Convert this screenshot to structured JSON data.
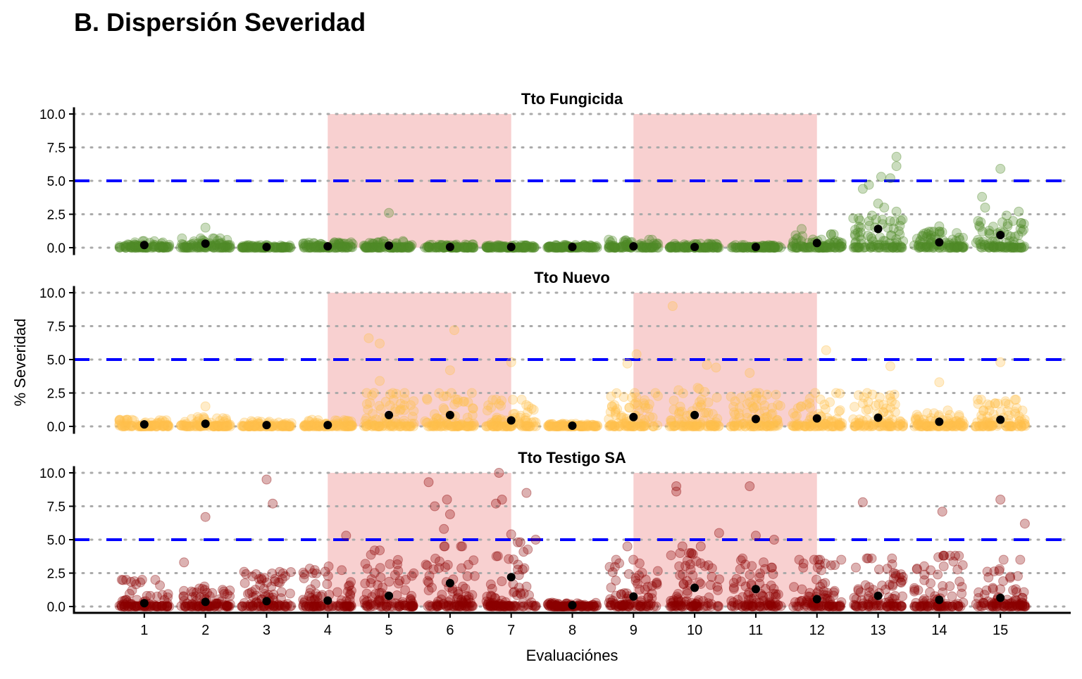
{
  "chart_data": {
    "type": "scatter",
    "title": "B. Dispersión Severidad",
    "xlabel": "Evaluaciónes",
    "ylabel": "% Severidad",
    "categories": [
      "1",
      "2",
      "3",
      "4",
      "5",
      "6",
      "7",
      "8",
      "9",
      "10",
      "11",
      "12",
      "13",
      "14",
      "15"
    ],
    "xlim": [
      -0.15,
      16.15
    ],
    "ylim": [
      -0.4,
      10.2
    ],
    "yticks": [
      "0.0",
      "2.5",
      "5.0",
      "7.5",
      "10.0"
    ],
    "ytick_values": [
      0,
      2.5,
      5,
      7.5,
      10
    ],
    "grid": "horizontal-dotted",
    "threshold": {
      "value": 5,
      "color": "#0000ff",
      "style": "dashed"
    },
    "shaded_ranges": [
      [
        4,
        7
      ],
      [
        9,
        12
      ]
    ],
    "shade_color": "#f8d0d0",
    "mean_color": "#000000",
    "panels": [
      {
        "name": "Tto Fungicida",
        "color": "#4f8a28",
        "means": [
          0.2,
          0.3,
          0.05,
          0.1,
          0.15,
          0.05,
          0.05,
          0.05,
          0.1,
          0.05,
          0.05,
          0.35,
          1.4,
          0.4,
          0.95
        ],
        "bulk_spread": [
          0.5,
          0.7,
          0.2,
          0.4,
          0.5,
          0.25,
          0.2,
          0.2,
          0.6,
          0.3,
          0.2,
          1.0,
          2.2,
          1.2,
          2.0
        ],
        "outliers": [
          [
            2,
            1.5
          ],
          [
            5,
            2.6
          ],
          [
            12.75,
            4.4
          ],
          [
            12.85,
            4.7
          ],
          [
            13.3,
            6.8
          ],
          [
            13.3,
            6.1
          ],
          [
            13.05,
            5.3
          ],
          [
            13.2,
            5.2
          ],
          [
            13,
            3.3
          ],
          [
            13.1,
            3.0
          ],
          [
            12.9,
            2.4
          ],
          [
            13.3,
            2.7
          ],
          [
            15,
            5.9
          ],
          [
            14.7,
            3.8
          ],
          [
            14.75,
            3.0
          ],
          [
            15.1,
            2.4
          ],
          [
            15.3,
            2.7
          ],
          [
            14,
            1.6
          ],
          [
            11.75,
            1.4
          ]
        ]
      },
      {
        "name": "Tto Nuevo",
        "color": "#ffc04d",
        "means": [
          0.15,
          0.2,
          0.1,
          0.1,
          0.85,
          0.85,
          0.45,
          0.05,
          0.7,
          0.85,
          0.55,
          0.6,
          0.65,
          0.35,
          0.5
        ],
        "bulk_spread": [
          0.5,
          0.7,
          0.4,
          0.5,
          2.5,
          2.5,
          2.0,
          0.2,
          2.5,
          3.0,
          2.5,
          2.5,
          2.5,
          1.2,
          2.0
        ],
        "outliers": [
          [
            4.67,
            6.6
          ],
          [
            4.85,
            6.2
          ],
          [
            6.07,
            7.2
          ],
          [
            9.64,
            9.0
          ],
          [
            7,
            4.8
          ],
          [
            9.05,
            5.4
          ],
          [
            8.9,
            4.7
          ],
          [
            10.2,
            4.6
          ],
          [
            10.35,
            4.4
          ],
          [
            12.15,
            5.7
          ],
          [
            13.2,
            4.5
          ],
          [
            15,
            4.8
          ],
          [
            6,
            4.2
          ],
          [
            4.85,
            3.4
          ],
          [
            14,
            3.3
          ],
          [
            10.9,
            4.0
          ],
          [
            2,
            1.5
          ]
        ]
      },
      {
        "name": "Tto Testigo SA",
        "color": "#8b0000",
        "means": [
          0.25,
          0.35,
          0.4,
          0.45,
          0.8,
          1.75,
          2.2,
          0.1,
          0.75,
          1.4,
          1.3,
          0.55,
          0.8,
          0.5,
          0.65
        ],
        "bulk_spread": [
          2.0,
          1.5,
          2.6,
          3.0,
          4.2,
          4.5,
          4.8,
          0.3,
          3.5,
          4.0,
          3.6,
          3.5,
          3.6,
          3.8,
          3.5
        ],
        "outliers": [
          [
            2,
            6.7
          ],
          [
            3,
            9.5
          ],
          [
            3.1,
            7.7
          ],
          [
            1.65,
            3.3
          ],
          [
            4.3,
            5.3
          ],
          [
            5.65,
            9.3
          ],
          [
            5.75,
            7.5
          ],
          [
            5.95,
            8.0
          ],
          [
            6,
            6.9
          ],
          [
            5.9,
            5.8
          ],
          [
            6.8,
            10.0
          ],
          [
            6.75,
            7.7
          ],
          [
            6.85,
            8.0
          ],
          [
            7.25,
            8.5
          ],
          [
            7,
            5.4
          ],
          [
            7.15,
            4.8
          ],
          [
            7.4,
            5.0
          ],
          [
            9.7,
            9.0
          ],
          [
            9.7,
            8.6
          ],
          [
            10.4,
            5.5
          ],
          [
            10.9,
            9.0
          ],
          [
            11,
            5.3
          ],
          [
            11.3,
            5.0
          ],
          [
            12.75,
            7.8
          ],
          [
            14.05,
            7.1
          ],
          [
            15,
            8.0
          ],
          [
            15.4,
            6.2
          ],
          [
            8.9,
            4.5
          ],
          [
            9.8,
            4.5
          ],
          [
            10.1,
            4.5
          ],
          [
            4.85,
            4.2
          ]
        ]
      }
    ]
  }
}
